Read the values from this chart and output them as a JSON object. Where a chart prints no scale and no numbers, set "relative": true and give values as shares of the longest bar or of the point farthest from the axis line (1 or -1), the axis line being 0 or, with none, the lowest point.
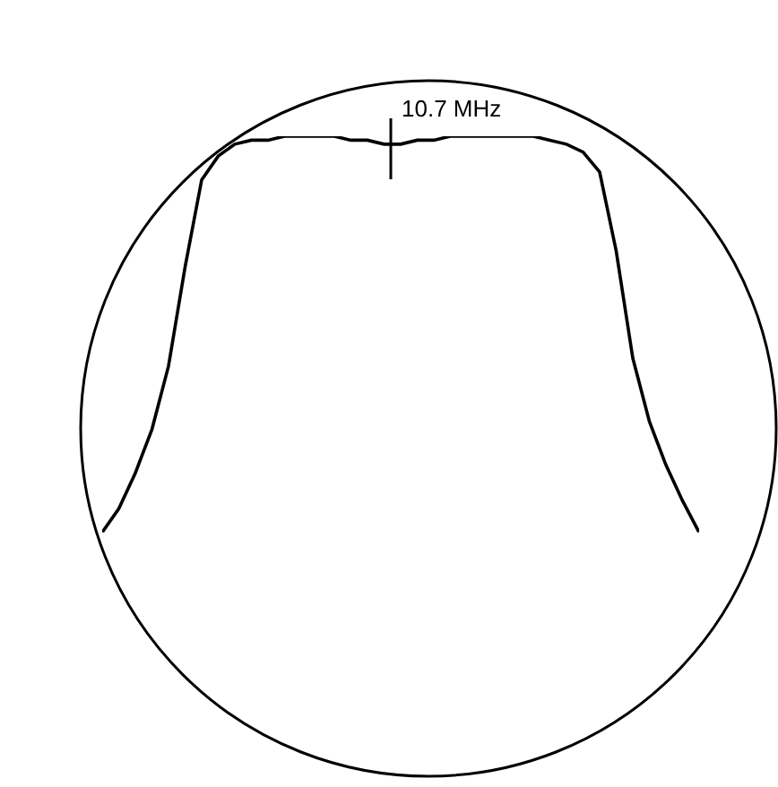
{
  "chart_data": {
    "type": "line",
    "relative": true,
    "color": "#000000",
    "marker": "none",
    "line_style": "solid",
    "categories": [
      null,
      null,
      null,
      null,
      null,
      null,
      null,
      null,
      null,
      null,
      null,
      null,
      null,
      null,
      null,
      null,
      null,
      null,
      null,
      null,
      null,
      null,
      null,
      null,
      null,
      null,
      null,
      null,
      null,
      null,
      null,
      null,
      null,
      null,
      null,
      null,
      null
    ],
    "values": [
      0,
      0.06,
      0.15,
      0.26,
      0.42,
      0.67,
      0.89,
      0.95,
      0.98,
      0.99,
      0.99,
      1,
      1,
      1,
      1,
      0.99,
      0.99,
      0.98,
      0.98,
      0.99,
      0.99,
      1,
      1,
      1,
      1,
      1,
      1,
      0.99,
      0.98,
      0.96,
      0.91,
      0.71,
      0.44,
      0.28,
      0.17,
      0.08,
      0
    ],
    "annotations": [
      "10.7 MHz"
    ]
  }
}
